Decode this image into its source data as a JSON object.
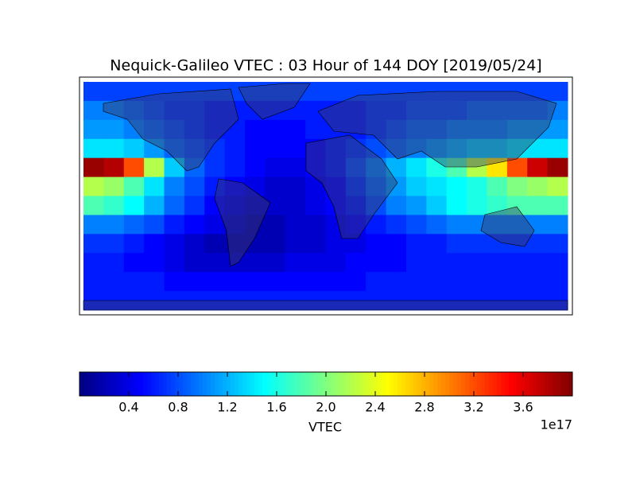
{
  "chart_data": {
    "type": "heatmap",
    "title": "Nequick-Galileo VTEC : 03 Hour of 144 DOY [2019/05/24]",
    "colormap": "jet",
    "values": [
      [
        0.75,
        0.75,
        0.75,
        0.75,
        0.75,
        0.75,
        0.75,
        0.75,
        0.75,
        0.75,
        0.75,
        0.75,
        0.75,
        0.75,
        0.75,
        0.75,
        0.75,
        0.75,
        0.75,
        0.75,
        0.75,
        0.75,
        0.75,
        0.75
      ],
      [
        1.0,
        1.0,
        0.9,
        0.8,
        0.7,
        0.7,
        0.6,
        0.6,
        0.6,
        0.6,
        0.6,
        0.6,
        0.6,
        0.6,
        0.7,
        0.7,
        0.8,
        0.8,
        0.8,
        0.9,
        0.9,
        0.9,
        0.9,
        1.0
      ],
      [
        1.1,
        1.1,
        1.0,
        0.9,
        0.8,
        0.7,
        0.6,
        0.6,
        0.5,
        0.5,
        0.5,
        0.6,
        0.6,
        0.6,
        0.7,
        0.8,
        0.9,
        0.9,
        1.0,
        1.0,
        1.0,
        1.1,
        1.1,
        1.1
      ],
      [
        1.4,
        1.4,
        1.3,
        1.1,
        0.9,
        0.8,
        0.7,
        0.6,
        0.5,
        0.5,
        0.5,
        0.5,
        0.6,
        0.7,
        0.8,
        0.9,
        1.0,
        1.1,
        1.2,
        1.3,
        1.3,
        1.4,
        1.4,
        1.4
      ],
      [
        3.9,
        3.8,
        3.2,
        2.2,
        1.3,
        0.9,
        0.7,
        0.6,
        0.5,
        0.4,
        0.4,
        0.5,
        0.6,
        0.8,
        1.0,
        1.2,
        1.4,
        1.6,
        1.8,
        2.2,
        2.6,
        3.2,
        3.7,
        3.9
      ],
      [
        2.2,
        2.1,
        1.8,
        1.4,
        1.0,
        0.8,
        0.6,
        0.5,
        0.4,
        0.3,
        0.3,
        0.4,
        0.5,
        0.7,
        0.9,
        1.1,
        1.3,
        1.4,
        1.5,
        1.6,
        1.8,
        2.0,
        2.1,
        2.2
      ],
      [
        1.8,
        1.7,
        1.5,
        1.2,
        0.9,
        0.7,
        0.5,
        0.4,
        0.3,
        0.3,
        0.3,
        0.4,
        0.5,
        0.6,
        0.8,
        1.0,
        1.1,
        1.3,
        1.5,
        1.6,
        1.7,
        1.8,
        1.8,
        1.8
      ],
      [
        1.0,
        1.0,
        0.9,
        0.8,
        0.6,
        0.5,
        0.4,
        0.3,
        0.2,
        0.2,
        0.3,
        0.3,
        0.4,
        0.5,
        0.6,
        0.7,
        0.8,
        0.9,
        1.0,
        1.0,
        1.0,
        1.0,
        1.0,
        1.0
      ],
      [
        0.7,
        0.7,
        0.6,
        0.5,
        0.4,
        0.3,
        0.2,
        0.2,
        0.2,
        0.2,
        0.3,
        0.3,
        0.4,
        0.4,
        0.5,
        0.5,
        0.6,
        0.6,
        0.7,
        0.7,
        0.7,
        0.7,
        0.7,
        0.7
      ],
      [
        0.6,
        0.6,
        0.5,
        0.5,
        0.4,
        0.3,
        0.3,
        0.3,
        0.3,
        0.3,
        0.4,
        0.4,
        0.4,
        0.5,
        0.5,
        0.5,
        0.6,
        0.6,
        0.6,
        0.6,
        0.6,
        0.6,
        0.6,
        0.6
      ],
      [
        0.6,
        0.6,
        0.6,
        0.6,
        0.5,
        0.5,
        0.5,
        0.5,
        0.5,
        0.5,
        0.5,
        0.5,
        0.5,
        0.5,
        0.6,
        0.6,
        0.6,
        0.6,
        0.6,
        0.6,
        0.6,
        0.6,
        0.6,
        0.6
      ],
      [
        0.6,
        0.6,
        0.6,
        0.6,
        0.6,
        0.6,
        0.6,
        0.6,
        0.6,
        0.6,
        0.6,
        0.6,
        0.6,
        0.6,
        0.6,
        0.6,
        0.6,
        0.6,
        0.6,
        0.6,
        0.6,
        0.6,
        0.6,
        0.6
      ]
    ],
    "colorbar": {
      "label": "VTEC",
      "offset_label": "1e17",
      "lim": [
        0,
        4.0
      ],
      "ticks": [
        0.4,
        0.8,
        1.2,
        1.6,
        {
          "value": 2,
          "label": "2.0"
        },
        2.4,
        2.8,
        3.2,
        3.6
      ]
    }
  }
}
